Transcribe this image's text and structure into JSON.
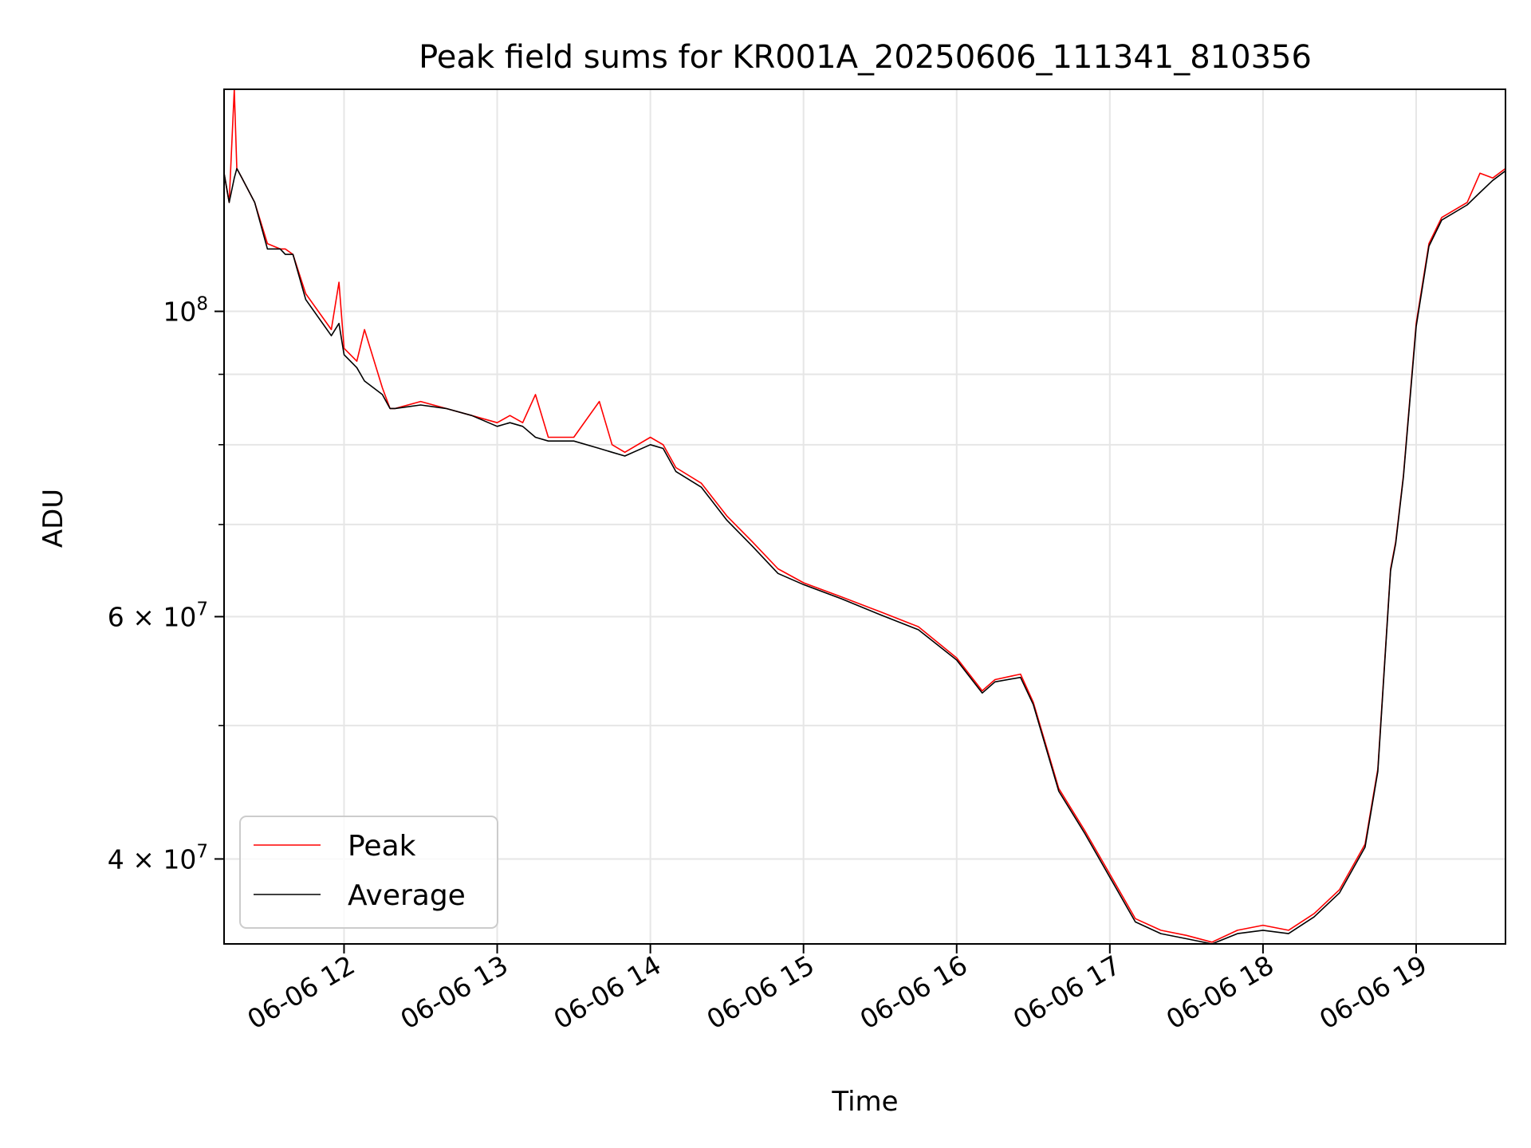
{
  "chart_data": {
    "type": "line",
    "title": "Peak field sums for KR001A_20250606_111341_810356",
    "xlabel": "Time",
    "ylabel": "ADU",
    "yscale": "log",
    "xlim": [
      "06-06 11:13",
      "06-06 19:35"
    ],
    "ylim": [
      34700000,
      145000000
    ],
    "x_ticks": [
      "06-06 12",
      "06-06 13",
      "06-06 14",
      "06-06 15",
      "06-06 16",
      "06-06 17",
      "06-06 18",
      "06-06 19"
    ],
    "x_tick_times": [
      "06-06 12:00",
      "06-06 13:00",
      "06-06 14:00",
      "06-06 15:00",
      "06-06 16:00",
      "06-06 17:00",
      "06-06 18:00",
      "06-06 19:00"
    ],
    "y_major_ticks": [
      {
        "value": 100000000,
        "label": "10",
        "exp": "8"
      },
      {
        "value": 60000000,
        "label": "6 × 10",
        "exp": "7"
      },
      {
        "value": 40000000,
        "label": "4 × 10",
        "exp": "7"
      }
    ],
    "y_minor_ticks": [
      50000000,
      70000000,
      80000000,
      90000000
    ],
    "grid": true,
    "legend_position": "lower-left",
    "series": [
      {
        "name": "Peak",
        "color": "#ff0000",
        "x": [
          "06-06 11:13",
          "06-06 11:15",
          "06-06 11:17",
          "06-06 11:18",
          "06-06 11:20",
          "06-06 11:25",
          "06-06 11:30",
          "06-06 11:35",
          "06-06 11:37",
          "06-06 11:40",
          "06-06 11:45",
          "06-06 11:55",
          "06-06 11:58",
          "06-06 12:00",
          "06-06 12:05",
          "06-06 12:08",
          "06-06 12:15",
          "06-06 12:18",
          "06-06 12:20",
          "06-06 12:30",
          "06-06 12:40",
          "06-06 12:50",
          "06-06 13:00",
          "06-06 13:05",
          "06-06 13:10",
          "06-06 13:15",
          "06-06 13:20",
          "06-06 13:30",
          "06-06 13:40",
          "06-06 13:45",
          "06-06 13:50",
          "06-06 14:00",
          "06-06 14:05",
          "06-06 14:10",
          "06-06 14:20",
          "06-06 14:30",
          "06-06 14:40",
          "06-06 14:50",
          "06-06 15:00",
          "06-06 15:15",
          "06-06 15:30",
          "06-06 15:45",
          "06-06 16:00",
          "06-06 16:10",
          "06-06 16:15",
          "06-06 16:25",
          "06-06 16:30",
          "06-06 16:40",
          "06-06 16:50",
          "06-06 17:00",
          "06-06 17:10",
          "06-06 17:20",
          "06-06 17:30",
          "06-06 17:40",
          "06-06 17:50",
          "06-06 18:00",
          "06-06 18:10",
          "06-06 18:20",
          "06-06 18:30",
          "06-06 18:40",
          "06-06 18:45",
          "06-06 18:50",
          "06-06 18:52",
          "06-06 18:55",
          "06-06 19:00",
          "06-06 19:05",
          "06-06 19:10",
          "06-06 19:20",
          "06-06 19:25",
          "06-06 19:30",
          "06-06 19:35"
        ],
        "y": [
          126000000,
          120000000,
          145000000,
          127000000,
          125000000,
          120000000,
          112000000,
          111000000,
          111000000,
          110000000,
          103000000,
          97000000,
          105000000,
          94000000,
          92000000,
          97000000,
          88000000,
          85000000,
          85000000,
          86000000,
          85000000,
          84000000,
          83000000,
          84000000,
          83000000,
          87000000,
          81000000,
          81000000,
          86000000,
          80000000,
          79000000,
          81000000,
          80000000,
          77000000,
          75000000,
          71000000,
          68000000,
          65000000,
          63500000,
          62000000,
          60500000,
          59000000,
          56000000,
          53000000,
          54000000,
          54500000,
          52000000,
          45000000,
          42000000,
          39000000,
          36200000,
          35500000,
          35200000,
          34800000,
          35500000,
          35800000,
          35500000,
          36500000,
          38000000,
          41000000,
          46500000,
          65000000,
          68000000,
          76000000,
          98000000,
          112000000,
          117000000,
          120000000,
          126000000,
          125000000,
          127000000
        ]
      },
      {
        "name": "Average",
        "color": "#000000",
        "x": [
          "06-06 11:13",
          "06-06 11:15",
          "06-06 11:17",
          "06-06 11:18",
          "06-06 11:20",
          "06-06 11:25",
          "06-06 11:30",
          "06-06 11:35",
          "06-06 11:37",
          "06-06 11:40",
          "06-06 11:45",
          "06-06 11:55",
          "06-06 11:58",
          "06-06 12:00",
          "06-06 12:05",
          "06-06 12:08",
          "06-06 12:15",
          "06-06 12:18",
          "06-06 12:20",
          "06-06 12:30",
          "06-06 12:40",
          "06-06 12:50",
          "06-06 13:00",
          "06-06 13:05",
          "06-06 13:10",
          "06-06 13:15",
          "06-06 13:20",
          "06-06 13:30",
          "06-06 13:40",
          "06-06 13:45",
          "06-06 13:50",
          "06-06 14:00",
          "06-06 14:05",
          "06-06 14:10",
          "06-06 14:20",
          "06-06 14:30",
          "06-06 14:40",
          "06-06 14:50",
          "06-06 15:00",
          "06-06 15:15",
          "06-06 15:30",
          "06-06 15:45",
          "06-06 16:00",
          "06-06 16:10",
          "06-06 16:15",
          "06-06 16:25",
          "06-06 16:30",
          "06-06 16:40",
          "06-06 16:50",
          "06-06 17:00",
          "06-06 17:10",
          "06-06 17:20",
          "06-06 17:30",
          "06-06 17:40",
          "06-06 17:50",
          "06-06 18:00",
          "06-06 18:10",
          "06-06 18:20",
          "06-06 18:30",
          "06-06 18:40",
          "06-06 18:45",
          "06-06 18:50",
          "06-06 18:52",
          "06-06 18:55",
          "06-06 19:00",
          "06-06 19:05",
          "06-06 19:10",
          "06-06 19:20",
          "06-06 19:25",
          "06-06 19:30",
          "06-06 19:35"
        ],
        "y": [
          126000000,
          120000000,
          125000000,
          127000000,
          125000000,
          120000000,
          111000000,
          111000000,
          110000000,
          110000000,
          102000000,
          96000000,
          98000000,
          93000000,
          91000000,
          89000000,
          87000000,
          85000000,
          85000000,
          85500000,
          85000000,
          84000000,
          82500000,
          83000000,
          82500000,
          81000000,
          80500000,
          80500000,
          79500000,
          79000000,
          78500000,
          80000000,
          79500000,
          76500000,
          74500000,
          70500000,
          67500000,
          64500000,
          63300000,
          61800000,
          60200000,
          58700000,
          55800000,
          52800000,
          53800000,
          54200000,
          51800000,
          44800000,
          41800000,
          38800000,
          36000000,
          35300000,
          35000000,
          34600000,
          35300000,
          35500000,
          35300000,
          36300000,
          37800000,
          40800000,
          46300000,
          64800000,
          67800000,
          75800000,
          97500000,
          111500000,
          116500000,
          119500000,
          122000000,
          124500000,
          126500000
        ]
      }
    ]
  }
}
